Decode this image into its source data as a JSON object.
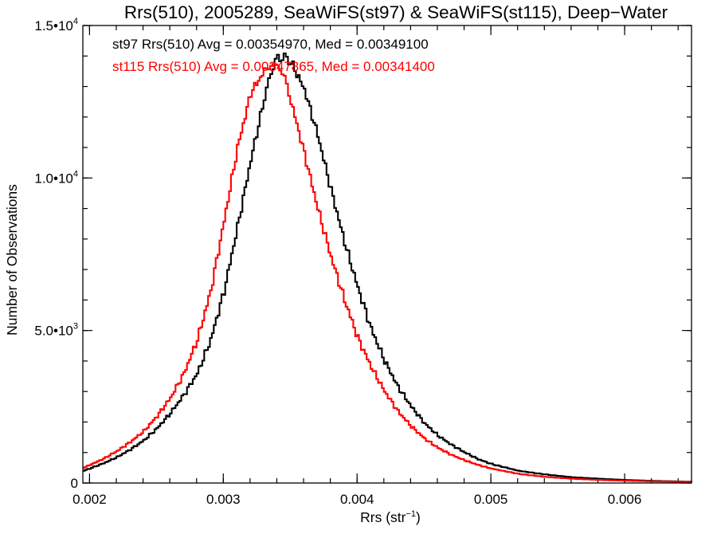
{
  "chart_data": {
    "type": "line",
    "title": "Rrs(510), 2005289, SeaWiFS(st97) & SeaWiFS(st115), Deep−Water",
    "xlabel": "Rrs (str",
    "xlabel_exponent": "−1",
    "xlabel_suffix": ")",
    "ylabel": "Number of Observations",
    "xlim": [
      0.00195,
      0.0065
    ],
    "ylim": [
      0,
      15000
    ],
    "x_ticks": [
      {
        "value": 0.002,
        "label": "0.002"
      },
      {
        "value": 0.003,
        "label": "0.003"
      },
      {
        "value": 0.004,
        "label": "0.004"
      },
      {
        "value": 0.005,
        "label": "0.005"
      },
      {
        "value": 0.006,
        "label": "0.006"
      }
    ],
    "y_ticks": [
      {
        "value": 0,
        "label": "0",
        "exponent": ""
      },
      {
        "value": 5000,
        "label": "5.0•10",
        "exponent": "3"
      },
      {
        "value": 10000,
        "label": "1.0•10",
        "exponent": "4"
      },
      {
        "value": 15000,
        "label": "1.5•10",
        "exponent": "4"
      }
    ],
    "x_minor_step": 0.0002,
    "y_minor_step": 1000,
    "annotations": [
      {
        "text": "st97 Rrs(510) Avg = 0.00354970, Med = 0.00349100",
        "color": "#000000"
      },
      {
        "text": "st115 Rrs(510) Avg = 0.00347865, Med = 0.00341400",
        "color": "#ff0000"
      }
    ],
    "series": [
      {
        "color": "#000000",
        "x": [
          0.00195,
          0.0021,
          0.0022,
          0.0023,
          0.0024,
          0.0025,
          0.0026,
          0.0027,
          0.0028,
          0.0029,
          0.003,
          0.0031,
          0.0032,
          0.0033,
          0.00335,
          0.0034,
          0.00345,
          0.0035,
          0.0036,
          0.0037,
          0.0038,
          0.0039,
          0.004,
          0.0041,
          0.0042,
          0.0043,
          0.0044,
          0.0045,
          0.0046,
          0.0047,
          0.0048,
          0.0049,
          0.005,
          0.0052,
          0.0054,
          0.0056,
          0.0058,
          0.006,
          0.0062,
          0.0064,
          0.0065
        ],
        "y": [
          400,
          650,
          850,
          1100,
          1400,
          1800,
          2300,
          2900,
          3600,
          4700,
          6300,
          8400,
          10600,
          12600,
          13500,
          13950,
          13950,
          13800,
          12900,
          11400,
          9600,
          7900,
          6400,
          5050,
          4000,
          3150,
          2500,
          1950,
          1550,
          1250,
          1000,
          780,
          620,
          400,
          280,
          190,
          140,
          100,
          70,
          50,
          40
        ]
      },
      {
        "color": "#ff0000",
        "x": [
          0.00195,
          0.0021,
          0.0022,
          0.0023,
          0.0024,
          0.0025,
          0.0026,
          0.0027,
          0.0028,
          0.0029,
          0.003,
          0.0031,
          0.0032,
          0.0033,
          0.00335,
          0.0034,
          0.00345,
          0.0035,
          0.0036,
          0.0037,
          0.0038,
          0.0039,
          0.004,
          0.0041,
          0.0042,
          0.0043,
          0.0044,
          0.0045,
          0.0046,
          0.0047,
          0.0048,
          0.0049,
          0.005,
          0.0052,
          0.0054,
          0.0056,
          0.0058,
          0.006,
          0.0062,
          0.0064,
          0.0065
        ],
        "y": [
          500,
          800,
          1050,
          1350,
          1700,
          2200,
          2800,
          3600,
          4700,
          6300,
          8600,
          11000,
          12800,
          13500,
          13700,
          13700,
          13300,
          12500,
          10800,
          9000,
          7400,
          6000,
          4750,
          3800,
          3000,
          2350,
          1850,
          1450,
          1150,
          920,
          740,
          590,
          470,
          300,
          200,
          140,
          100,
          75,
          55,
          40,
          30
        ]
      }
    ]
  }
}
